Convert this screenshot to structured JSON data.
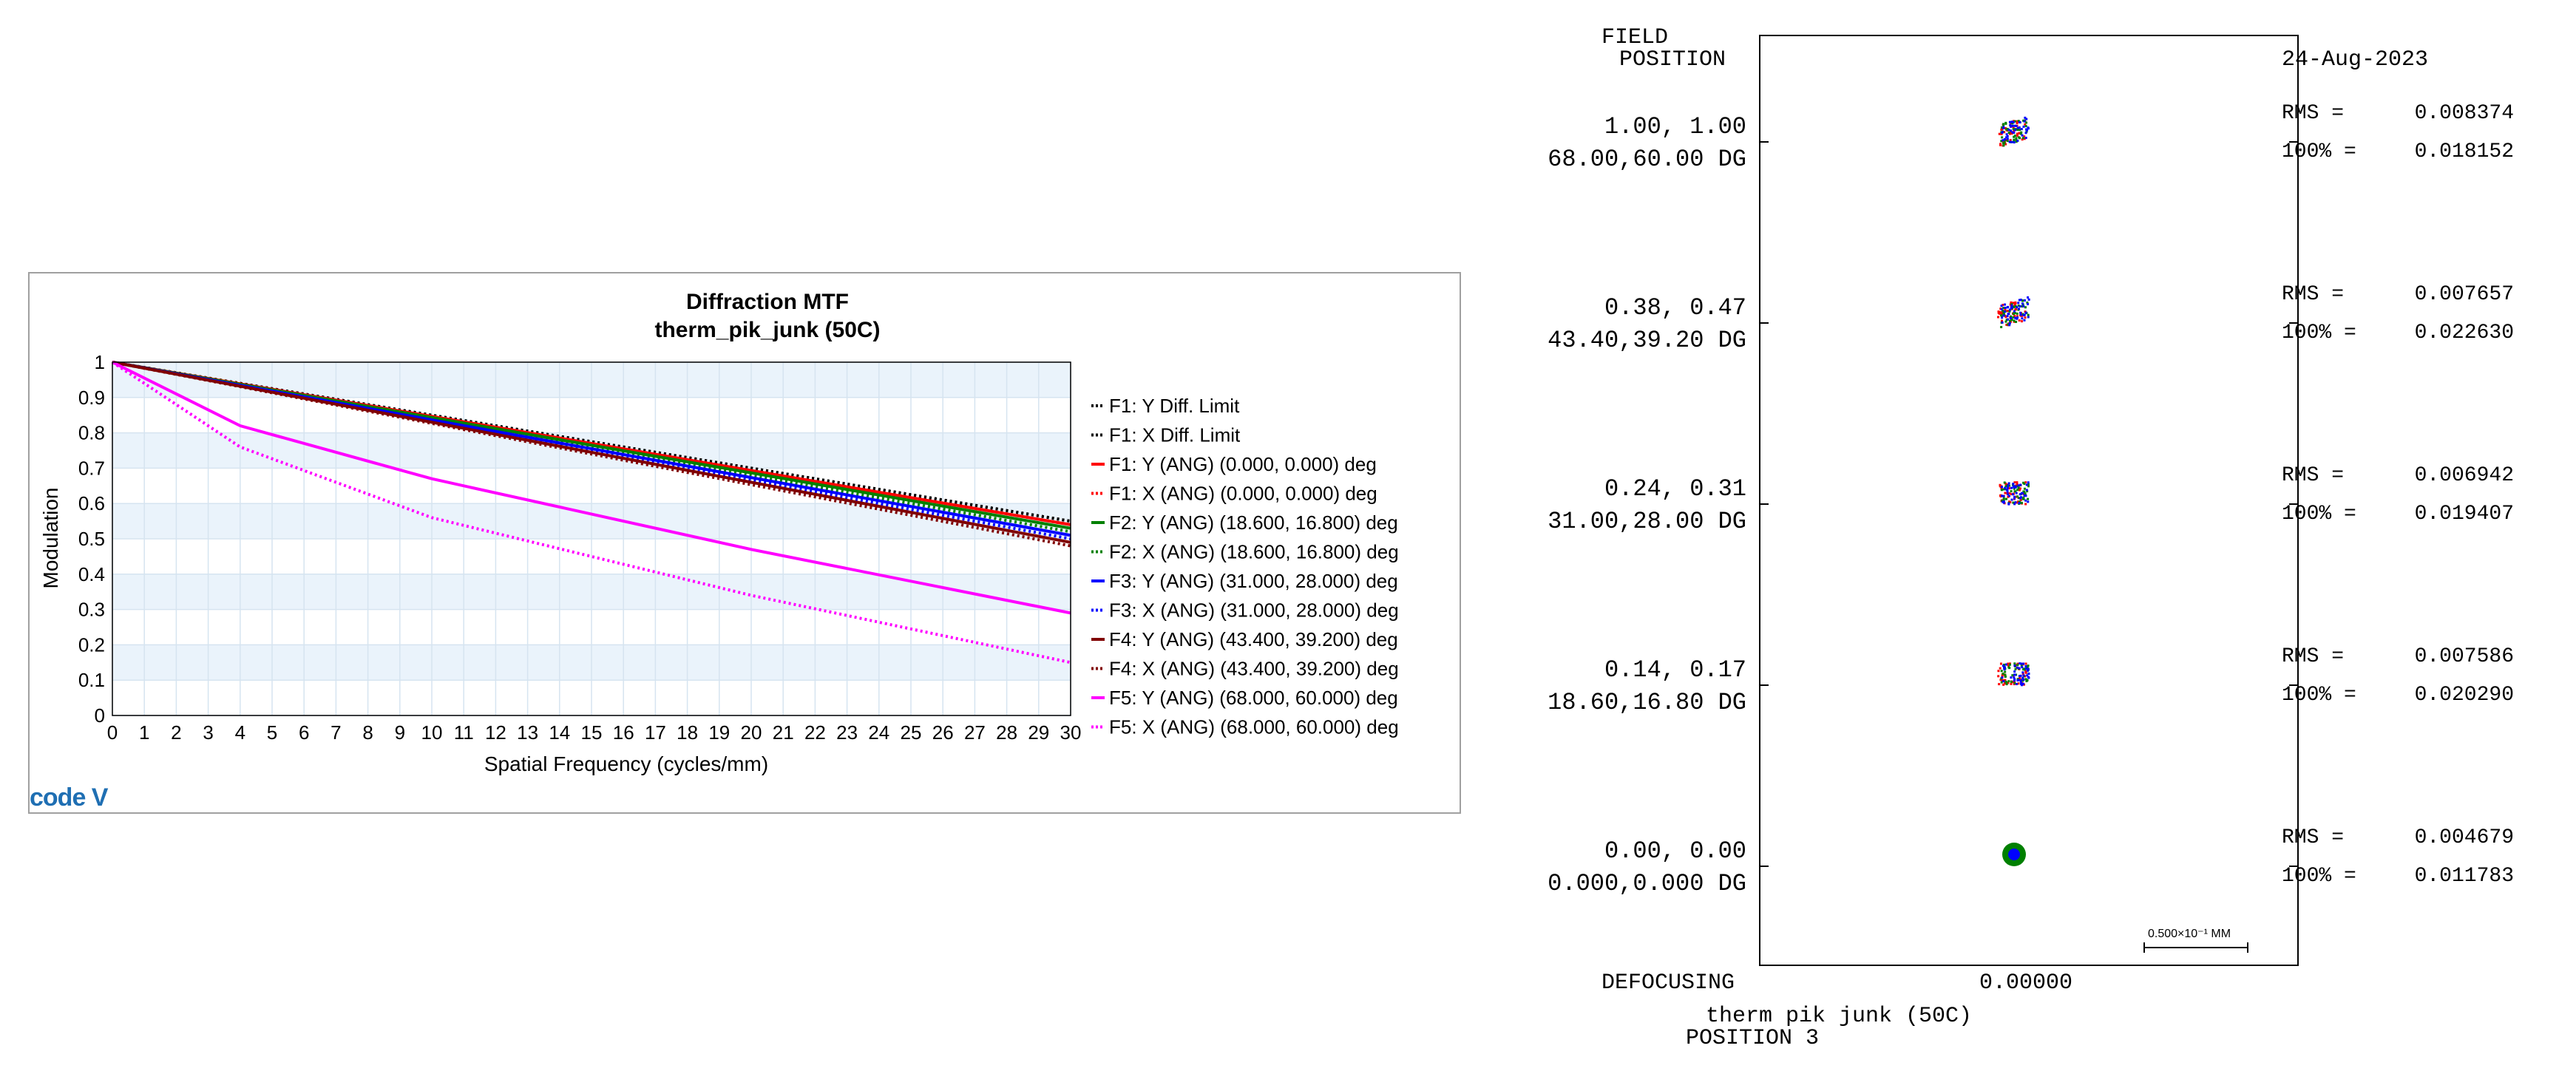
{
  "chart_data": [
    {
      "type": "line",
      "title": "Diffraction MTF",
      "subtitle": "therm_pik_junk (50C)",
      "xlabel": "Spatial Frequency (cycles/mm)",
      "ylabel": "Modulation",
      "xlim": [
        0,
        30
      ],
      "ylim": [
        0,
        1
      ],
      "x_ticks": [
        "0",
        "1",
        "2",
        "3",
        "4",
        "5",
        "6",
        "7",
        "8",
        "9",
        "10",
        "11",
        "12",
        "13",
        "14",
        "15",
        "16",
        "17",
        "18",
        "19",
        "20",
        "21",
        "22",
        "23",
        "24",
        "25",
        "26",
        "27",
        "28",
        "29",
        "30"
      ],
      "y_ticks": [
        "0",
        "0.1",
        "0.2",
        "0.3",
        "0.4",
        "0.5",
        "0.6",
        "0.7",
        "0.8",
        "0.9",
        "1"
      ],
      "grid": true,
      "legend_position": "right",
      "logo": "code V",
      "series": [
        {
          "name": "F1: Y Diff. Limit",
          "color": "#000000",
          "dash": "dotted",
          "x": [
            0,
            30
          ],
          "y": [
            1.0,
            0.55
          ]
        },
        {
          "name": "F1: X Diff. Limit",
          "color": "#000000",
          "dash": "dotted",
          "x": [
            0,
            30
          ],
          "y": [
            1.0,
            0.55
          ]
        },
        {
          "name": "F1: Y (ANG) (0.000, 0.000) deg",
          "color": "#ff0000",
          "dash": "solid",
          "x": [
            0,
            30
          ],
          "y": [
            1.0,
            0.54
          ]
        },
        {
          "name": "F1: X (ANG) (0.000, 0.000) deg",
          "color": "#ff0000",
          "dash": "dotted",
          "x": [
            0,
            30
          ],
          "y": [
            1.0,
            0.54
          ]
        },
        {
          "name": "F2: Y (ANG) (18.600, 16.800) deg",
          "color": "#008000",
          "dash": "solid",
          "x": [
            0,
            30
          ],
          "y": [
            1.0,
            0.53
          ]
        },
        {
          "name": "F2: X (ANG) (18.600, 16.800) deg",
          "color": "#008000",
          "dash": "dotted",
          "x": [
            0,
            30
          ],
          "y": [
            1.0,
            0.52
          ]
        },
        {
          "name": "F3: Y (ANG) (31.000, 28.000) deg",
          "color": "#0000ff",
          "dash": "solid",
          "x": [
            0,
            30
          ],
          "y": [
            1.0,
            0.51
          ]
        },
        {
          "name": "F3: X (ANG) (31.000, 28.000) deg",
          "color": "#0000ff",
          "dash": "dotted",
          "x": [
            0,
            30
          ],
          "y": [
            1.0,
            0.5
          ]
        },
        {
          "name": "F4: Y (ANG) (43.400, 39.200) deg",
          "color": "#800000",
          "dash": "solid",
          "x": [
            0,
            30
          ],
          "y": [
            1.0,
            0.49
          ]
        },
        {
          "name": "F4: X (ANG) (43.400, 39.200) deg",
          "color": "#800000",
          "dash": "dotted",
          "x": [
            0,
            30
          ],
          "y": [
            1.0,
            0.48
          ]
        },
        {
          "name": "F5: Y (ANG) (68.000, 60.000) deg",
          "color": "#ff00ff",
          "dash": "solid",
          "x": [
            0,
            4,
            10,
            20,
            30
          ],
          "y": [
            1.0,
            0.82,
            0.67,
            0.47,
            0.29
          ]
        },
        {
          "name": "F5: X (ANG) (68.000, 60.000) deg",
          "color": "#ff00ff",
          "dash": "dotted",
          "x": [
            0,
            4,
            10,
            20,
            30
          ],
          "y": [
            1.0,
            0.76,
            0.56,
            0.34,
            0.15
          ]
        }
      ]
    },
    {
      "type": "scatter",
      "header_field": "FIELD",
      "header_position": "POSITION",
      "date": "24-Aug-2023",
      "defocus_label": "DEFOCUSING",
      "defocus_value": "0.00000",
      "footer_title": "therm pik junk (50C)",
      "footer_position": "POSITION 3",
      "scale_label": "0.500×10⁻¹ MM",
      "fields": [
        {
          "rel": "1.00, 1.00",
          "ang": "68.00,60.00 DG",
          "rms_label": "RMS =",
          "rms": "0.008374",
          "full_label": "100% =",
          "full": "0.018152",
          "spot_colors": [
            "#ff0000",
            "#008000",
            "#0000ff"
          ]
        },
        {
          "rel": "0.38, 0.47",
          "ang": "43.40,39.20 DG",
          "rms_label": "RMS =",
          "rms": "0.007657",
          "full_label": "100% =",
          "full": "0.022630",
          "spot_colors": [
            "#ff0000",
            "#008000",
            "#0000ff"
          ]
        },
        {
          "rel": "0.24, 0.31",
          "ang": "31.00,28.00 DG",
          "rms_label": "RMS =",
          "rms": "0.006942",
          "full_label": "100% =",
          "full": "0.019407",
          "spot_colors": [
            "#ff0000",
            "#008000",
            "#0000ff"
          ]
        },
        {
          "rel": "0.14, 0.17",
          "ang": "18.60,16.80 DG",
          "rms_label": "RMS =",
          "rms": "0.007586",
          "full_label": "100% =",
          "full": "0.020290",
          "spot_colors": [
            "#ff0000",
            "#008000",
            "#0000ff"
          ]
        },
        {
          "rel": "0.00, 0.00",
          "ang": "0.000,0.000 DG",
          "rms_label": "RMS =",
          "rms": "0.004679",
          "full_label": "100% =",
          "full": "0.011783",
          "spot_colors": [
            "#ff0000",
            "#008000",
            "#0000ff"
          ]
        }
      ]
    }
  ]
}
